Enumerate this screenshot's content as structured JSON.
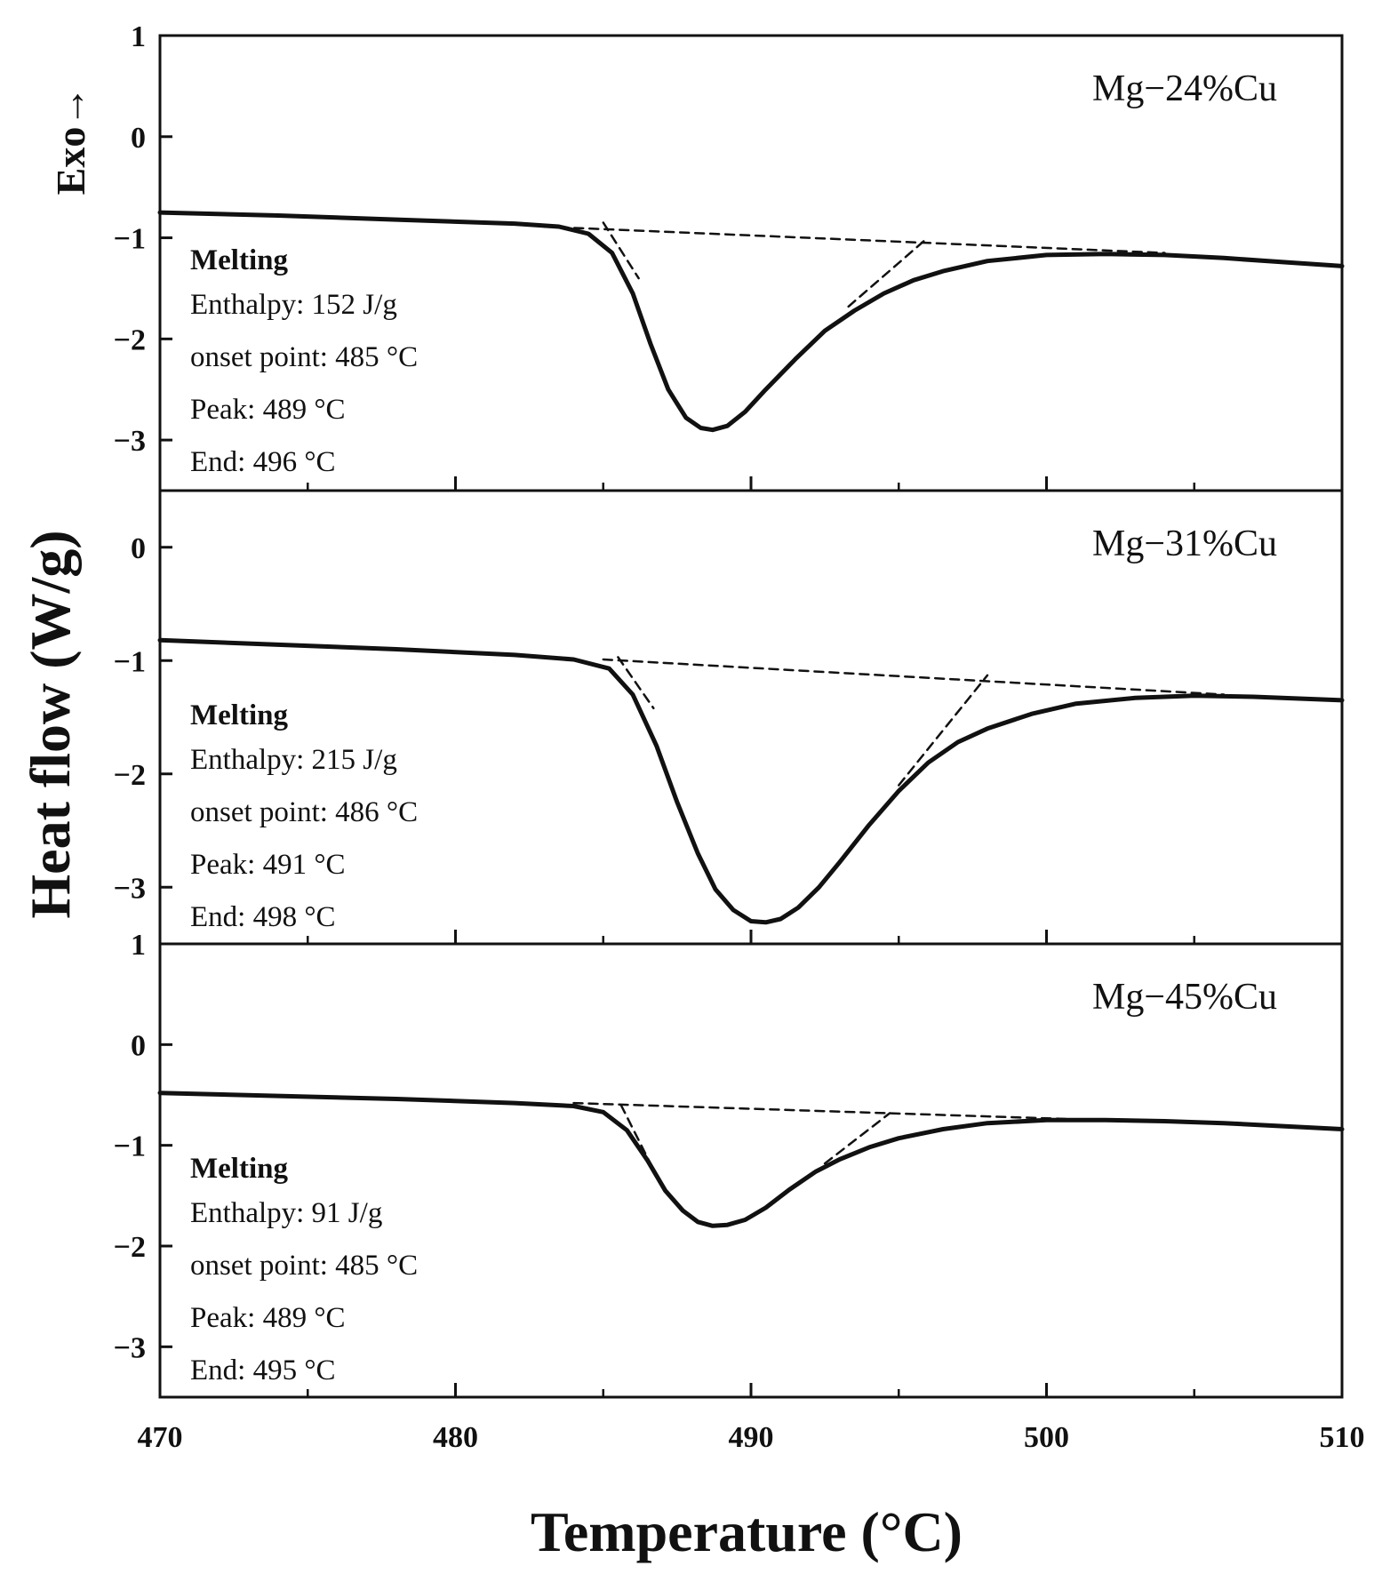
{
  "chart_data": [
    {
      "type": "line",
      "panel_label": "Mg−24%Cu",
      "xlim": [
        470,
        510
      ],
      "ylim": [
        -3.5,
        1
      ],
      "y_ticks": [
        {
          "value": 1,
          "label": "1"
        },
        {
          "value": 0,
          "label": "0"
        },
        {
          "value": -1,
          "label": "−1"
        },
        {
          "value": -2,
          "label": "−2"
        },
        {
          "value": -3,
          "label": "−3"
        }
      ],
      "annotation": {
        "title": "Melting",
        "lines": [
          "Enthalpy: 152 J/g",
          "onset point: 485 °C",
          "Peak: 489 °C",
          "End: 496 °C"
        ]
      },
      "series": [
        {
          "name": "DSC curve",
          "style": "solid",
          "x": [
            470,
            474,
            478,
            482,
            483.5,
            484.5,
            485.3,
            486.0,
            486.6,
            487.2,
            487.8,
            488.3,
            488.7,
            489.2,
            489.8,
            490.5,
            491.5,
            492.5,
            493.5,
            494.5,
            495.5,
            496.5,
            498,
            500,
            502,
            504,
            506,
            508,
            510
          ],
          "y": [
            -0.75,
            -0.78,
            -0.82,
            -0.86,
            -0.89,
            -0.96,
            -1.15,
            -1.55,
            -2.05,
            -2.5,
            -2.78,
            -2.88,
            -2.9,
            -2.86,
            -2.72,
            -2.5,
            -2.2,
            -1.92,
            -1.72,
            -1.55,
            -1.42,
            -1.33,
            -1.23,
            -1.17,
            -1.16,
            -1.17,
            -1.2,
            -1.24,
            -1.28
          ]
        },
        {
          "name": "baseline",
          "style": "dashed",
          "x": [
            483,
            504
          ],
          "y": [
            -0.89,
            -1.15
          ]
        },
        {
          "name": "onset tangent",
          "style": "dashed",
          "x": [
            485.0,
            486.2
          ],
          "y": [
            -0.85,
            -1.4
          ]
        },
        {
          "name": "end tangent",
          "style": "dashed",
          "x": [
            493.3,
            495.9
          ],
          "y": [
            -1.68,
            -1.02
          ]
        }
      ]
    },
    {
      "type": "line",
      "panel_label": "Mg−31%Cu",
      "xlim": [
        470,
        510
      ],
      "ylim": [
        -3.5,
        0.5
      ],
      "y_ticks": [
        {
          "value": 0,
          "label": "0"
        },
        {
          "value": -1,
          "label": "−1"
        },
        {
          "value": -2,
          "label": "−2"
        },
        {
          "value": -3,
          "label": "−3"
        }
      ],
      "annotation": {
        "title": "Melting",
        "lines": [
          "Enthalpy: 215 J/g",
          "onset point: 486 °C",
          "Peak: 491 °C",
          "End: 498 °C"
        ]
      },
      "series": [
        {
          "name": "DSC curve",
          "style": "solid",
          "x": [
            470,
            474,
            478,
            482,
            484,
            485.2,
            486.0,
            486.8,
            487.5,
            488.2,
            488.8,
            489.4,
            490.0,
            490.5,
            491.0,
            491.6,
            492.3,
            493.0,
            494.0,
            495.0,
            496.0,
            497.0,
            498.0,
            499.5,
            501,
            503,
            505,
            507,
            510
          ],
          "y": [
            -0.82,
            -0.86,
            -0.9,
            -0.95,
            -0.99,
            -1.07,
            -1.3,
            -1.75,
            -2.25,
            -2.7,
            -3.02,
            -3.2,
            -3.3,
            -3.31,
            -3.28,
            -3.18,
            -3.0,
            -2.78,
            -2.45,
            -2.15,
            -1.9,
            -1.72,
            -1.6,
            -1.47,
            -1.38,
            -1.33,
            -1.31,
            -1.32,
            -1.35
          ]
        },
        {
          "name": "baseline",
          "style": "dashed",
          "x": [
            485,
            506
          ],
          "y": [
            -0.99,
            -1.3
          ]
        },
        {
          "name": "onset tangent",
          "style": "dashed",
          "x": [
            485.5,
            486.7
          ],
          "y": [
            -0.97,
            -1.42
          ]
        },
        {
          "name": "end tangent",
          "style": "dashed",
          "x": [
            495.0,
            498.0
          ],
          "y": [
            -2.1,
            -1.13
          ]
        }
      ]
    },
    {
      "type": "line",
      "panel_label": "Mg−45%Cu",
      "xlim": [
        470,
        510
      ],
      "ylim": [
        -3.5,
        1
      ],
      "y_ticks": [
        {
          "value": 1,
          "label": "1"
        },
        {
          "value": 0,
          "label": "0"
        },
        {
          "value": -1,
          "label": "−1"
        },
        {
          "value": -2,
          "label": "−2"
        },
        {
          "value": -3,
          "label": "−3"
        }
      ],
      "annotation": {
        "title": "Melting",
        "lines": [
          "Enthalpy: 91 J/g",
          "onset point: 485 °C",
          "Peak: 489 °C",
          "End: 495 °C"
        ]
      },
      "series": [
        {
          "name": "DSC curve",
          "style": "solid",
          "x": [
            470,
            474,
            478,
            482,
            484,
            485.0,
            485.8,
            486.5,
            487.1,
            487.7,
            488.2,
            488.7,
            489.2,
            489.8,
            490.5,
            491.3,
            492.2,
            493.0,
            494.0,
            495.0,
            496.5,
            498,
            500,
            502,
            504,
            506,
            508,
            510
          ],
          "y": [
            -0.48,
            -0.51,
            -0.54,
            -0.58,
            -0.61,
            -0.67,
            -0.85,
            -1.15,
            -1.45,
            -1.65,
            -1.76,
            -1.8,
            -1.79,
            -1.74,
            -1.62,
            -1.44,
            -1.26,
            -1.14,
            -1.02,
            -0.93,
            -0.84,
            -0.78,
            -0.75,
            -0.75,
            -0.76,
            -0.78,
            -0.81,
            -0.84
          ]
        },
        {
          "name": "baseline",
          "style": "dashed",
          "x": [
            484,
            503
          ],
          "y": [
            -0.58,
            -0.76
          ]
        },
        {
          "name": "onset tangent",
          "style": "dashed",
          "x": [
            485.6,
            486.8
          ],
          "y": [
            -0.6,
            -1.3
          ]
        },
        {
          "name": "end tangent",
          "style": "dashed",
          "x": [
            492.5,
            494.7
          ],
          "y": [
            -1.18,
            -0.68
          ]
        }
      ]
    }
  ],
  "x_ticks": [
    {
      "value": 470,
      "label": "470"
    },
    {
      "value": 480,
      "label": "480"
    },
    {
      "value": 490,
      "label": "490"
    },
    {
      "value": 500,
      "label": "500"
    },
    {
      "value": 510,
      "label": "510"
    }
  ],
  "x_minor_ticks": [
    475,
    485,
    495,
    505
  ],
  "xlabel": "Temperature (°C)",
  "ylabel": "Heat flow (W/g)",
  "exo_label": "Exo→"
}
